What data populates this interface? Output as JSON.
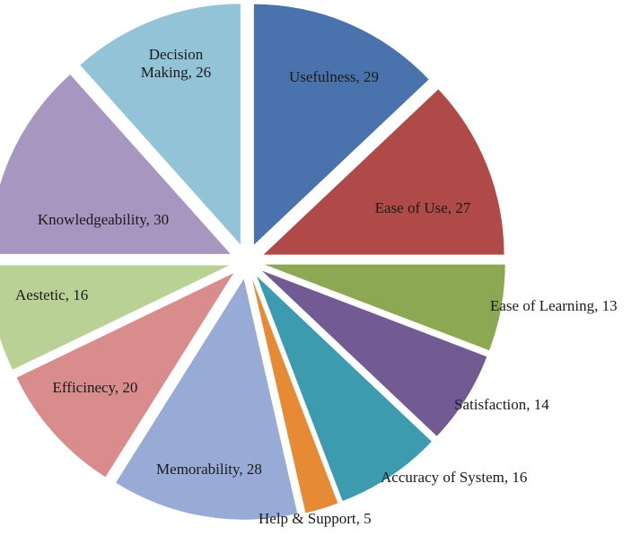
{
  "chart_data": {
    "type": "pie",
    "title": "",
    "exploded": true,
    "start": "top, clockwise",
    "slices": [
      {
        "label": "Usefulness, 29",
        "name": "Usefulness",
        "value": 29,
        "color": "#4a72ad"
      },
      {
        "label": "Ease of Use, 27",
        "name": "Ease of Use",
        "value": 27,
        "color": "#b04a48"
      },
      {
        "label": "Ease of Learning, 13",
        "name": "Ease of Learning",
        "value": 13,
        "color": "#8ca853"
      },
      {
        "label": "Satisfaction, 14",
        "name": "Satisfaction",
        "value": 14,
        "color": "#725a92"
      },
      {
        "label": "Accuracy of System, 16",
        "name": "Accuracy of System",
        "value": 16,
        "color": "#3d9bb0"
      },
      {
        "label": "Help & Support, 5",
        "name": "Help & Support",
        "value": 5,
        "color": "#e68a36"
      },
      {
        "label": "Memorability, 28",
        "name": "Memorability",
        "value": 28,
        "color": "#98aad6"
      },
      {
        "label": "Efficinecy, 20",
        "name": "Efficinecy",
        "value": 20,
        "color": "#d88c8b"
      },
      {
        "label": "Aestetic, 16",
        "name": "Aestetic",
        "value": 16,
        "color": "#b9d195"
      },
      {
        "label": "Knowledgeability, 30",
        "name": "Knowledgeability",
        "value": 30,
        "color": "#a796bf"
      },
      {
        "label": "Decision Making, 26",
        "name": "Decision Making",
        "value": 26,
        "color": "#93c3d6"
      }
    ]
  }
}
